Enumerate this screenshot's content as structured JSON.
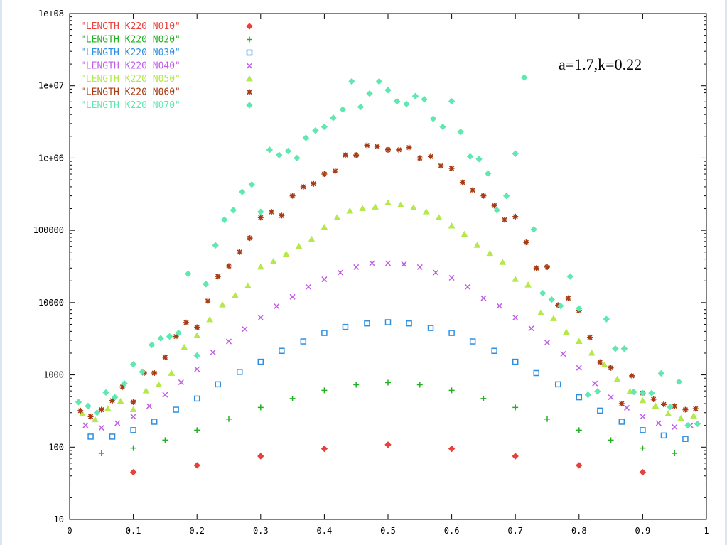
{
  "chart_data": {
    "type": "scatter",
    "title": "",
    "xlabel": "",
    "ylabel": "",
    "xlim": [
      0,
      1
    ],
    "ylim": [
      10,
      100000000
    ],
    "y_scale": "log",
    "grid": false,
    "legend_position": "top-left",
    "x_ticks": [
      "0",
      "0.1",
      "0.2",
      "0.3",
      "0.4",
      "0.5",
      "0.6",
      "0.7",
      "0.8",
      "0.9",
      "1"
    ],
    "y_ticks": [
      "10",
      "100",
      "1000",
      "10000",
      "100000",
      "1e+06",
      "1e+07",
      "1e+08"
    ],
    "annotation": "a=1.7,k=0.22",
    "series": [
      {
        "name": "\"LENGTH K220 N010\"",
        "color": "#e8413c",
        "marker": "diamond",
        "x": [
          0.1,
          0.2,
          0.3,
          0.4,
          0.5,
          0.6,
          0.7,
          0.8,
          0.9
        ],
        "y": [
          45,
          56,
          75,
          95,
          108,
          95,
          75,
          56,
          45
        ]
      },
      {
        "name": "\"LENGTH K220 N020\"",
        "color": "#22b022",
        "marker": "plus",
        "x": [
          0.05,
          0.1,
          0.15,
          0.2,
          0.25,
          0.3,
          0.35,
          0.4,
          0.45,
          0.5,
          0.55,
          0.6,
          0.65,
          0.7,
          0.75,
          0.8,
          0.85,
          0.9,
          0.95
        ],
        "y": [
          82,
          97,
          125,
          172,
          245,
          355,
          470,
          610,
          730,
          780,
          730,
          610,
          470,
          355,
          245,
          172,
          125,
          97,
          82
        ]
      },
      {
        "name": "\"LENGTH K220 N030\"",
        "color": "#2e8fe0",
        "marker": "square",
        "x": [
          0.033,
          0.067,
          0.1,
          0.133,
          0.167,
          0.2,
          0.233,
          0.267,
          0.3,
          0.333,
          0.367,
          0.4,
          0.433,
          0.467,
          0.5,
          0.533,
          0.567,
          0.6,
          0.633,
          0.667,
          0.7,
          0.733,
          0.767,
          0.8,
          0.833,
          0.867,
          0.9,
          0.933,
          0.967
        ],
        "y": [
          140,
          140,
          172,
          225,
          330,
          470,
          740,
          1100,
          1520,
          2150,
          2900,
          3800,
          4600,
          5150,
          5350,
          5150,
          4450,
          3800,
          2900,
          2150,
          1520,
          1060,
          740,
          490,
          320,
          225,
          172,
          145,
          130
        ]
      },
      {
        "name": "\"LENGTH K220 N040\"",
        "color": "#c05ce6",
        "marker": "cross",
        "x": [
          0.025,
          0.05,
          0.075,
          0.1,
          0.125,
          0.15,
          0.175,
          0.2,
          0.225,
          0.25,
          0.275,
          0.3,
          0.325,
          0.35,
          0.375,
          0.4,
          0.425,
          0.45,
          0.475,
          0.5,
          0.525,
          0.55,
          0.575,
          0.6,
          0.625,
          0.65,
          0.675,
          0.7,
          0.725,
          0.75,
          0.775,
          0.8,
          0.825,
          0.85,
          0.875,
          0.9,
          0.925,
          0.95,
          0.975
        ],
        "y": [
          200,
          185,
          215,
          265,
          370,
          530,
          790,
          1200,
          2050,
          2900,
          4300,
          6200,
          8900,
          12000,
          16500,
          21000,
          26000,
          31000,
          35000,
          35000,
          34000,
          31000,
          26000,
          22000,
          16500,
          11500,
          9000,
          6200,
          4400,
          2800,
          1950,
          1250,
          760,
          490,
          350,
          265,
          215,
          190,
          200
        ]
      },
      {
        "name": "\"LENGTH K220 N050\"",
        "color": "#b5e84a",
        "marker": "triangle",
        "x": [
          0.02,
          0.04,
          0.06,
          0.08,
          0.1,
          0.12,
          0.14,
          0.16,
          0.18,
          0.2,
          0.22,
          0.24,
          0.26,
          0.28,
          0.3,
          0.32,
          0.34,
          0.36,
          0.38,
          0.4,
          0.42,
          0.44,
          0.46,
          0.48,
          0.5,
          0.52,
          0.54,
          0.56,
          0.58,
          0.6,
          0.62,
          0.64,
          0.66,
          0.68,
          0.7,
          0.72,
          0.74,
          0.76,
          0.78,
          0.8,
          0.82,
          0.84,
          0.86,
          0.88,
          0.9,
          0.92,
          0.94,
          0.96,
          0.98
        ],
        "y": [
          290,
          240,
          340,
          430,
          330,
          600,
          730,
          1050,
          2400,
          3500,
          5800,
          9300,
          12500,
          17000,
          31000,
          37000,
          47000,
          60000,
          75000,
          110000,
          150000,
          185000,
          200000,
          210000,
          240000,
          225000,
          205000,
          180000,
          150000,
          115000,
          88000,
          62000,
          48000,
          36000,
          21000,
          17500,
          7200,
          6000,
          3900,
          2900,
          2000,
          1380,
          870,
          590,
          440,
          370,
          290,
          250,
          270
        ]
      },
      {
        "name": "\"LENGTH K220 N060\"",
        "color": "#a83a14",
        "marker": "star",
        "x": [
          0.017,
          0.033,
          0.05,
          0.067,
          0.083,
          0.1,
          0.117,
          0.133,
          0.15,
          0.167,
          0.183,
          0.2,
          0.217,
          0.233,
          0.25,
          0.267,
          0.283,
          0.3,
          0.317,
          0.333,
          0.35,
          0.367,
          0.383,
          0.4,
          0.417,
          0.433,
          0.45,
          0.467,
          0.483,
          0.5,
          0.517,
          0.533,
          0.55,
          0.567,
          0.583,
          0.6,
          0.617,
          0.633,
          0.65,
          0.667,
          0.683,
          0.7,
          0.717,
          0.733,
          0.75,
          0.767,
          0.783,
          0.8,
          0.817,
          0.833,
          0.85,
          0.867,
          0.883,
          0.9,
          0.917,
          0.933,
          0.95,
          0.967,
          0.983
        ],
        "y": [
          320,
          265,
          330,
          440,
          680,
          420,
          1060,
          1060,
          1750,
          3400,
          5300,
          4550,
          10500,
          23000,
          32000,
          50000,
          78000,
          150000,
          180000,
          160000,
          300000,
          400000,
          440000,
          600000,
          660000,
          1100000,
          1100000,
          1500000,
          1450000,
          1300000,
          1300000,
          1400000,
          1000000,
          1050000,
          780000,
          720000,
          460000,
          360000,
          300000,
          220000,
          140000,
          155000,
          68000,
          30000,
          31000,
          9200,
          11500,
          7800,
          3300,
          1500,
          1250,
          400,
          970,
          560,
          460,
          390,
          370,
          330,
          340
        ]
      },
      {
        "name": "\"LENGTH K220 N070\"",
        "color": "#5fe8b0",
        "marker": "diamond",
        "x": [
          0.014,
          0.029,
          0.043,
          0.057,
          0.071,
          0.086,
          0.1,
          0.114,
          0.129,
          0.143,
          0.157,
          0.171,
          0.186,
          0.2,
          0.214,
          0.229,
          0.243,
          0.257,
          0.271,
          0.286,
          0.3,
          0.314,
          0.329,
          0.343,
          0.357,
          0.371,
          0.386,
          0.4,
          0.414,
          0.429,
          0.443,
          0.457,
          0.471,
          0.486,
          0.5,
          0.514,
          0.529,
          0.543,
          0.557,
          0.571,
          0.586,
          0.6,
          0.614,
          0.629,
          0.643,
          0.657,
          0.671,
          0.686,
          0.7,
          0.714,
          0.729,
          0.743,
          0.757,
          0.771,
          0.786,
          0.8,
          0.814,
          0.829,
          0.843,
          0.857,
          0.871,
          0.886,
          0.9,
          0.914,
          0.929,
          0.943,
          0.957,
          0.971,
          0.986
        ],
        "y": [
          420,
          370,
          300,
          570,
          490,
          760,
          1400,
          1100,
          2600,
          3200,
          3400,
          3800,
          25000,
          1850,
          18000,
          62000,
          140000,
          190000,
          340000,
          430000,
          180000,
          1300000,
          1100000,
          1250000,
          1000000,
          1900000,
          2400000,
          2700000,
          3600000,
          4700000,
          11500000,
          5100000,
          7800000,
          11500000,
          8700000,
          6100000,
          5600000,
          7200000,
          6500000,
          3500000,
          2700000,
          6100000,
          2300000,
          1050000,
          970000,
          610000,
          190000,
          300000,
          1150000,
          13000000,
          103000,
          13500,
          11000,
          9000,
          23000,
          8300,
          530,
          590,
          5900,
          2300,
          2300,
          580,
          560,
          560,
          1050,
          360,
          800,
          200,
          210
        ]
      }
    ]
  }
}
